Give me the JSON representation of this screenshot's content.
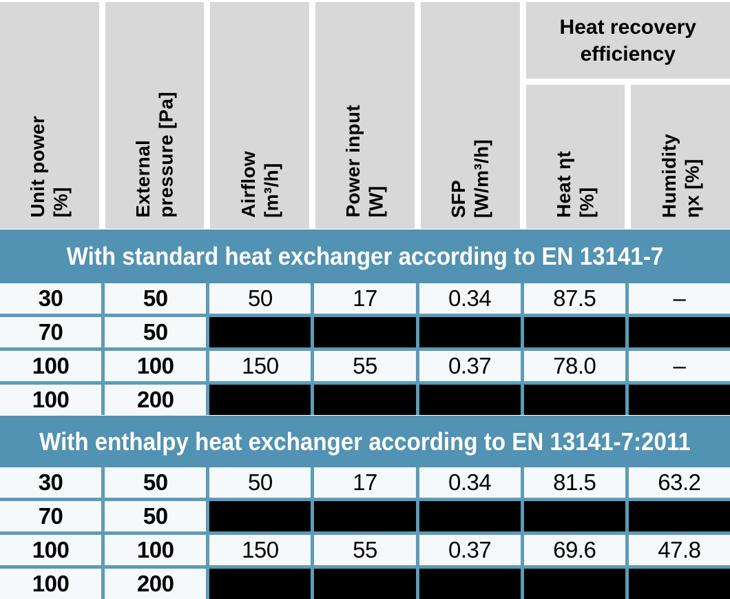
{
  "colors": {
    "band_blue": "#5292b3",
    "divider_blue": "#5d9bb9",
    "row_bg": "#f5f9fb",
    "header_gray": "#d8d8d8",
    "redacted_black": "#000000",
    "band_text": "#ffffff",
    "text_black": "#000000"
  },
  "table": {
    "group_header": "Heat recovery\nefficiency",
    "columns": [
      {
        "id": "unit_power",
        "label": "Unit power\n[%]"
      },
      {
        "id": "external_pressure",
        "label": "External\npressure [Pa]"
      },
      {
        "id": "airflow",
        "label": "Airflow\n[m³/h]"
      },
      {
        "id": "power_input",
        "label": "Power input\n[W]"
      },
      {
        "id": "sfp",
        "label": "SFP\n[W/m³/h]"
      },
      {
        "id": "heat_efficiency",
        "label": "Heat ηt\n[%]"
      },
      {
        "id": "humidity_efficiency",
        "label": "Humidity\nηx [%]"
      }
    ],
    "sections": [
      {
        "title": "With standard heat exchanger according to EN 13141-7",
        "rows": [
          {
            "redacted": false,
            "cells": [
              "30",
              "50",
              "50",
              "17",
              "0.34",
              "87.5",
              "–"
            ]
          },
          {
            "redacted": true,
            "cells": [
              "70",
              "50",
              "",
              "",
              "",
              "",
              ""
            ]
          },
          {
            "redacted": false,
            "cells": [
              "100",
              "100",
              "150",
              "55",
              "0.37",
              "78.0",
              "–"
            ]
          },
          {
            "redacted": true,
            "cells": [
              "100",
              "200",
              "",
              "",
              "",
              "",
              ""
            ]
          }
        ]
      },
      {
        "title": "With enthalpy heat exchanger according to EN 13141-7:2011",
        "rows": [
          {
            "redacted": false,
            "cells": [
              "30",
              "50",
              "50",
              "17",
              "0.34",
              "81.5",
              "63.2"
            ]
          },
          {
            "redacted": true,
            "cells": [
              "70",
              "50",
              "",
              "",
              "",
              "",
              ""
            ]
          },
          {
            "redacted": false,
            "cells": [
              "100",
              "100",
              "150",
              "55",
              "0.37",
              "69.6",
              "47.8"
            ]
          },
          {
            "redacted": true,
            "cells": [
              "100",
              "200",
              "",
              "",
              "",
              "",
              ""
            ]
          }
        ]
      }
    ]
  }
}
